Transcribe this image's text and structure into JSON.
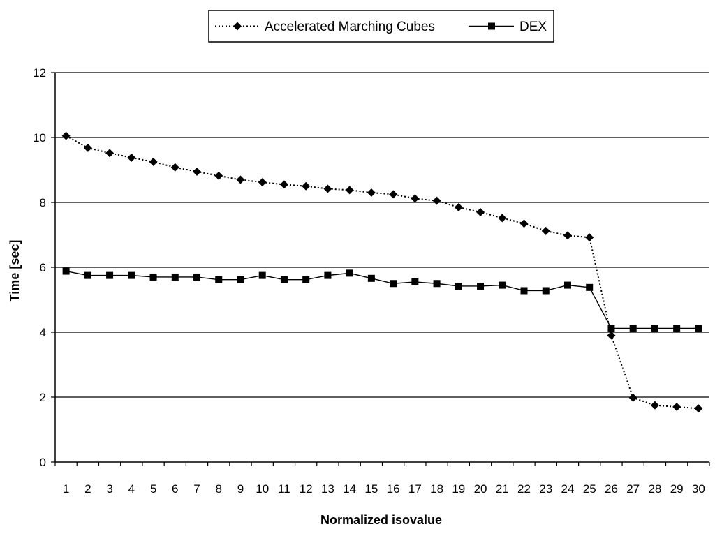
{
  "chart_data": {
    "type": "line",
    "title": "",
    "xlabel": "Normalized isovalue",
    "ylabel": "Time [sec]",
    "categories": [
      "1",
      "2",
      "3",
      "4",
      "5",
      "6",
      "7",
      "8",
      "9",
      "10",
      "11",
      "12",
      "13",
      "14",
      "15",
      "16",
      "17",
      "18",
      "19",
      "20",
      "21",
      "22",
      "23",
      "24",
      "25",
      "26",
      "27",
      "28",
      "29",
      "30"
    ],
    "ylim": [
      0,
      12
    ],
    "yticks": [
      "0",
      "2",
      "4",
      "6",
      "8",
      "10",
      "12"
    ],
    "grid": "horizontal",
    "legend_position": "top-center",
    "series": [
      {
        "name": "Accelerated Marching Cubes",
        "marker": "diamond",
        "line_style": "dotted",
        "color": "#000000",
        "values": [
          10.05,
          9.68,
          9.52,
          9.38,
          9.25,
          9.08,
          8.95,
          8.82,
          8.7,
          8.62,
          8.55,
          8.5,
          8.42,
          8.38,
          8.3,
          8.25,
          8.12,
          8.05,
          7.85,
          7.7,
          7.52,
          7.35,
          7.12,
          6.98,
          6.92,
          3.9,
          1.98,
          1.75,
          1.7,
          1.65
        ]
      },
      {
        "name": "DEX",
        "marker": "square",
        "line_style": "solid",
        "color": "#000000",
        "values": [
          5.88,
          5.75,
          5.75,
          5.75,
          5.7,
          5.7,
          5.7,
          5.62,
          5.62,
          5.75,
          5.62,
          5.62,
          5.75,
          5.82,
          5.66,
          5.5,
          5.55,
          5.5,
          5.42,
          5.42,
          5.45,
          5.28,
          5.28,
          5.45,
          5.38,
          4.12,
          4.12,
          4.12,
          4.12,
          4.12
        ]
      }
    ]
  }
}
